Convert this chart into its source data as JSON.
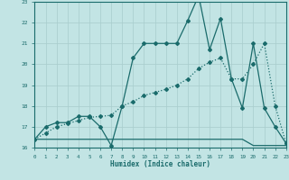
{
  "xlabel": "Humidex (Indice chaleur)",
  "xlim": [
    0,
    23
  ],
  "ylim": [
    16,
    23
  ],
  "xticks": [
    0,
    1,
    2,
    3,
    4,
    5,
    6,
    7,
    8,
    9,
    10,
    11,
    12,
    13,
    14,
    15,
    16,
    17,
    18,
    19,
    20,
    21,
    22,
    23
  ],
  "yticks": [
    16,
    17,
    18,
    19,
    20,
    21,
    22,
    23
  ],
  "bg_color": "#c2e4e4",
  "line_color": "#1a6b6b",
  "grid_color": "#a8cccc",
  "line1_x": [
    0,
    1,
    2,
    3,
    4,
    5,
    6,
    7,
    8,
    9,
    10,
    11,
    12,
    13,
    14,
    15,
    16,
    17,
    18,
    19,
    20,
    21,
    22,
    23
  ],
  "line1_y": [
    16.4,
    16.4,
    16.4,
    16.4,
    16.4,
    16.4,
    16.4,
    16.4,
    16.4,
    16.4,
    16.4,
    16.4,
    16.4,
    16.4,
    16.4,
    16.4,
    16.4,
    16.4,
    16.4,
    16.4,
    16.1,
    16.1,
    16.1,
    16.1
  ],
  "line2_x": [
    0,
    1,
    2,
    3,
    4,
    5,
    6,
    7,
    8,
    9,
    10,
    11,
    12,
    13,
    14,
    15,
    16,
    17,
    18,
    19,
    20,
    21,
    22,
    23
  ],
  "line2_y": [
    16.4,
    17.0,
    17.2,
    17.2,
    17.5,
    17.5,
    17.0,
    16.1,
    18.0,
    20.3,
    21.0,
    21.0,
    21.0,
    21.0,
    22.1,
    23.3,
    20.7,
    22.2,
    19.3,
    17.9,
    21.0,
    17.9,
    17.0,
    16.2
  ],
  "line3_x": [
    0,
    1,
    2,
    3,
    4,
    5,
    6,
    7,
    8,
    9,
    10,
    11,
    12,
    13,
    14,
    15,
    16,
    17,
    18,
    19,
    20,
    21,
    22,
    23
  ],
  "line3_y": [
    16.4,
    16.7,
    17.0,
    17.15,
    17.3,
    17.45,
    17.5,
    17.55,
    18.0,
    18.2,
    18.5,
    18.65,
    18.8,
    19.0,
    19.3,
    19.8,
    20.1,
    20.3,
    19.3,
    19.3,
    20.0,
    21.0,
    18.0,
    16.2
  ]
}
